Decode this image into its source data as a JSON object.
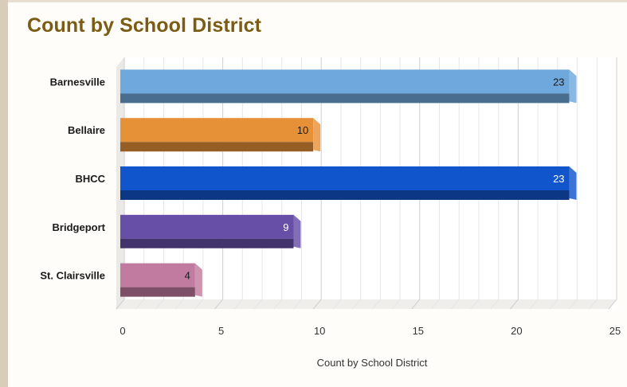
{
  "page": {
    "title": "Count by School District"
  },
  "colors": {
    "title": "#7a5c14",
    "bars": [
      "#6fa8dc",
      "#e69138",
      "#1155cc",
      "#674ea7",
      "#c27ba0"
    ]
  },
  "chart_data": {
    "type": "bar",
    "orientation": "horizontal",
    "style": "3d",
    "title": "Count by School District",
    "xlabel": "Count by School District",
    "ylabel": "",
    "categories": [
      "Barnesville",
      "Bellaire",
      "BHCC",
      "Bridgeport",
      "St. Clairsville"
    ],
    "values": [
      23,
      10,
      23,
      9,
      4
    ],
    "data_labels": [
      "23",
      "10",
      "23",
      "9",
      "4"
    ],
    "xlim": [
      0,
      25
    ],
    "xticks": [
      0,
      5,
      10,
      15,
      20,
      25
    ],
    "xtick_labels": [
      "0",
      "5",
      "10",
      "15",
      "20",
      "25"
    ],
    "grid": true,
    "legend": "none"
  }
}
